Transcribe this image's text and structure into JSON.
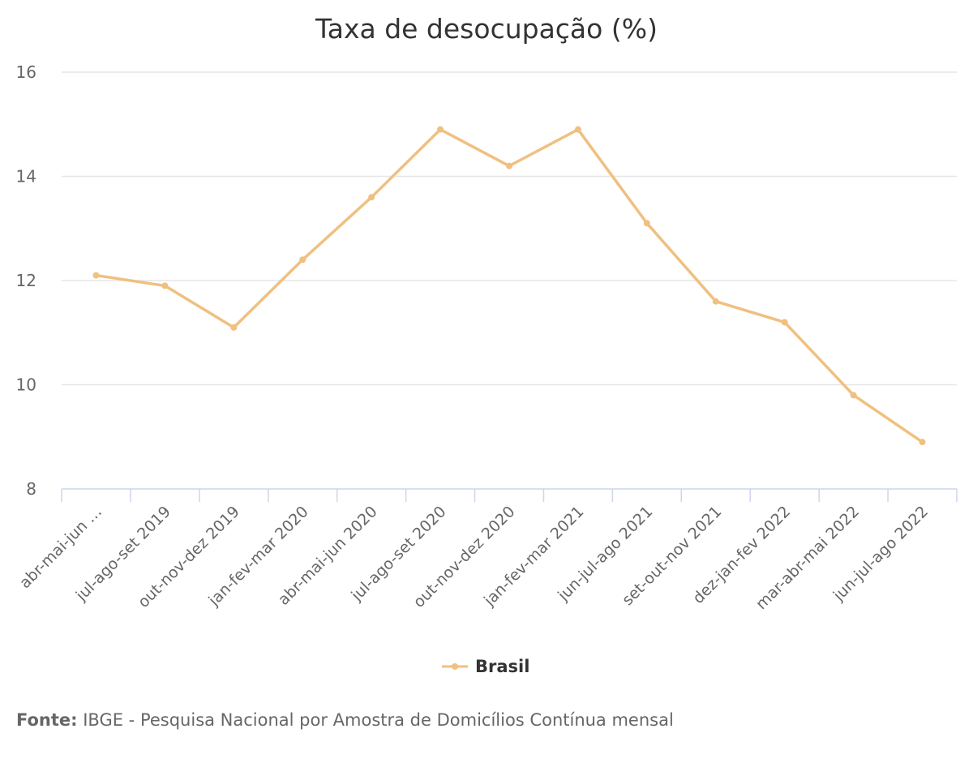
{
  "chart_data": {
    "type": "line",
    "title": "Taxa de desocupação (%)",
    "categories": [
      "abr-mai-jun …",
      "jul-ago-set 2019",
      "out-nov-dez 2019",
      "jan-fev-mar 2020",
      "abr-mai-jun 2020",
      "jul-ago-set 2020",
      "out-nov-dez 2020",
      "jan-fev-mar 2021",
      "jun-jul-ago 2021",
      "set-out-nov 2021",
      "dez-jan-fev 2022",
      "mar-abr-mai 2022",
      "jun-jul-ago 2022"
    ],
    "series": [
      {
        "name": "Brasil",
        "color": "#f0c080",
        "values": [
          12.1,
          11.9,
          11.1,
          12.4,
          13.6,
          14.9,
          14.2,
          14.9,
          13.1,
          11.6,
          11.2,
          9.8,
          8.9
        ]
      }
    ],
    "ylim": [
      8,
      16
    ],
    "yticks": [
      "8",
      "10",
      "12",
      "14",
      "16"
    ],
    "xlabel": "",
    "ylabel": "",
    "grid": true,
    "legend": "bottom-center"
  },
  "source": {
    "label": "Fonte:",
    "text": " IBGE - Pesquisa Nacional por Amostra de Domicílios Contínua mensal"
  }
}
